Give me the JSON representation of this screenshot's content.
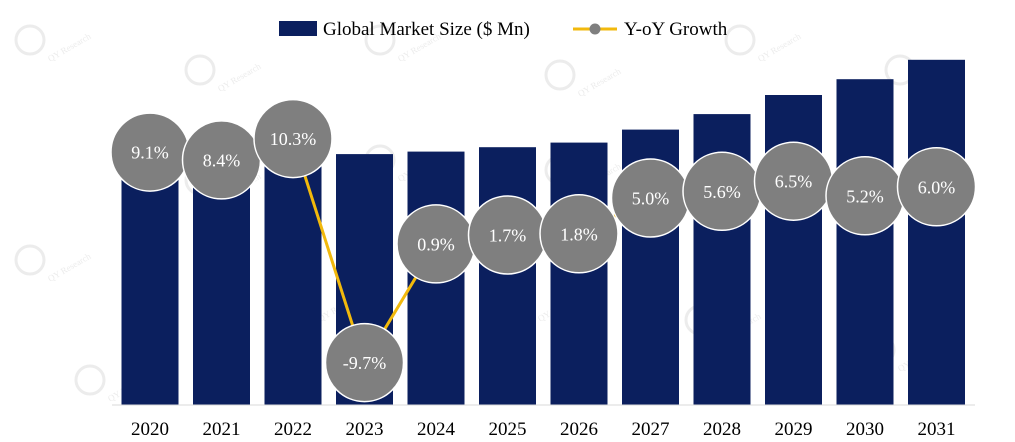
{
  "chart_data": {
    "type": "bar",
    "title": "",
    "xlabel": "",
    "ylabel": "",
    "categories": [
      "2020",
      "2021",
      "2022",
      "2023",
      "2024",
      "2025",
      "2026",
      "2027",
      "2028",
      "2029",
      "2030",
      "2031"
    ],
    "ylim": [
      0,
      100
    ],
    "series": [
      {
        "name": "Global Market Size ($ Mn)",
        "type": "bar",
        "color": "#0b1f5e",
        "values": [
          64.6,
          70.0,
          77.2,
          69.7,
          70.4,
          71.6,
          72.9,
          76.5,
          80.8,
          86.1,
          90.5,
          95.9
        ]
      },
      {
        "name": "Y-oY Growth",
        "type": "line",
        "color": "#f2b90c",
        "marker_color": "#7f7f7f",
        "values": [
          9.1,
          8.4,
          10.3,
          -9.7,
          0.9,
          1.7,
          1.8,
          5.0,
          5.6,
          6.5,
          5.2,
          6.0
        ],
        "labels": [
          "9.1%",
          "8.4%",
          "10.3%",
          "-9.7%",
          "0.9%",
          "1.7%",
          "1.8%",
          "5.0%",
          "5.6%",
          "6.5%",
          "5.2%",
          "6.0%"
        ]
      }
    ],
    "legend": {
      "position": "top-center",
      "items": [
        "Global Market Size ($ Mn)",
        "Y-oY Growth"
      ]
    }
  },
  "watermark": {
    "text": "QY Research",
    "color": "#ececec"
  }
}
